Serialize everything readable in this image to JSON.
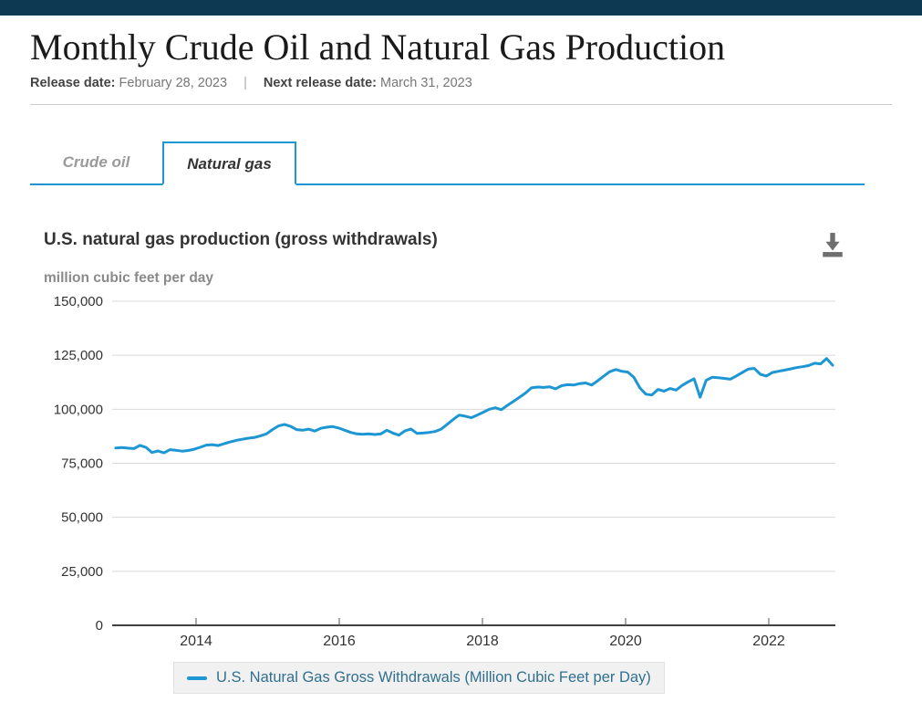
{
  "page": {
    "title": "Monthly Crude Oil and Natural Gas Production",
    "release_label": "Release date:",
    "release_value": "February 28, 2023",
    "separator": "|",
    "next_release_label": "Next release date:",
    "next_release_value": "March 31, 2023"
  },
  "tabs": [
    {
      "label": "Crude oil",
      "active": false
    },
    {
      "label": "Natural gas",
      "active": true
    }
  ],
  "chart": {
    "title": "U.S. natural gas production (gross withdrawals)",
    "subtitle": "million cubic feet per day",
    "download_icon": "download-icon"
  },
  "chart_data": {
    "type": "line",
    "title": "U.S. natural gas production (gross withdrawals)",
    "ylabel": "million cubic feet per day",
    "ylim": [
      0,
      150000
    ],
    "ytick_interval": 25000,
    "ytick_labels": [
      "150,000",
      "125,000",
      "100,000",
      "75,000",
      "50,000",
      "25,000",
      "0"
    ],
    "xtick_labels": [
      "2014",
      "2016",
      "2018",
      "2020",
      "2022"
    ],
    "x_start": "2013-01",
    "x_step": "monthly",
    "x_end": "2022-12",
    "grid": true,
    "legend_position": "bottom",
    "legend": "U.S. Natural Gas Gross Withdrawals (Million Cubic Feet per Day)",
    "series": [
      {
        "name": "U.S. Natural Gas Gross Withdrawals (Million Cubic Feet per Day)",
        "color": "#1d96d4",
        "values": [
          82100,
          82300,
          82000,
          81800,
          83300,
          82400,
          80000,
          80700,
          79800,
          81300,
          81000,
          80600,
          80900,
          81500,
          82400,
          83400,
          83600,
          83200,
          84100,
          84900,
          85600,
          86100,
          86600,
          86900,
          87700,
          88600,
          90600,
          92300,
          93000,
          92100,
          90600,
          90300,
          90800,
          89900,
          91200,
          91700,
          92000,
          91300,
          90300,
          89300,
          88600,
          88400,
          88600,
          88300,
          88600,
          90300,
          89000,
          88000,
          90000,
          90900,
          88800,
          89000,
          89300,
          89700,
          90800,
          93000,
          95300,
          97300,
          96800,
          96100,
          97300,
          98600,
          100000,
          100700,
          99800,
          101800,
          103600,
          105500,
          107500,
          109900,
          110300,
          110100,
          110400,
          109500,
          110900,
          111400,
          111200,
          111900,
          112200,
          111200,
          113200,
          115300,
          117400,
          118400,
          117600,
          117200,
          114800,
          109900,
          107000,
          106600,
          109200,
          108400,
          109600,
          108900,
          111000,
          112700,
          114100,
          105600,
          113400,
          114800,
          114600,
          114300,
          113900,
          115400,
          117000,
          118600,
          118900,
          116200,
          115400,
          117000,
          117600,
          118100,
          118700,
          119300,
          119700,
          120200,
          121300,
          121000,
          123500,
          120400
        ]
      }
    ]
  },
  "colors": {
    "topbar": "#0d3a52",
    "accent_blue": "#1d96d4",
    "grid": "#d9d9d9",
    "axis": "#404040",
    "axis_text": "#333333",
    "legend_text": "#31708f",
    "icon_gray": "#6e6e6e"
  }
}
